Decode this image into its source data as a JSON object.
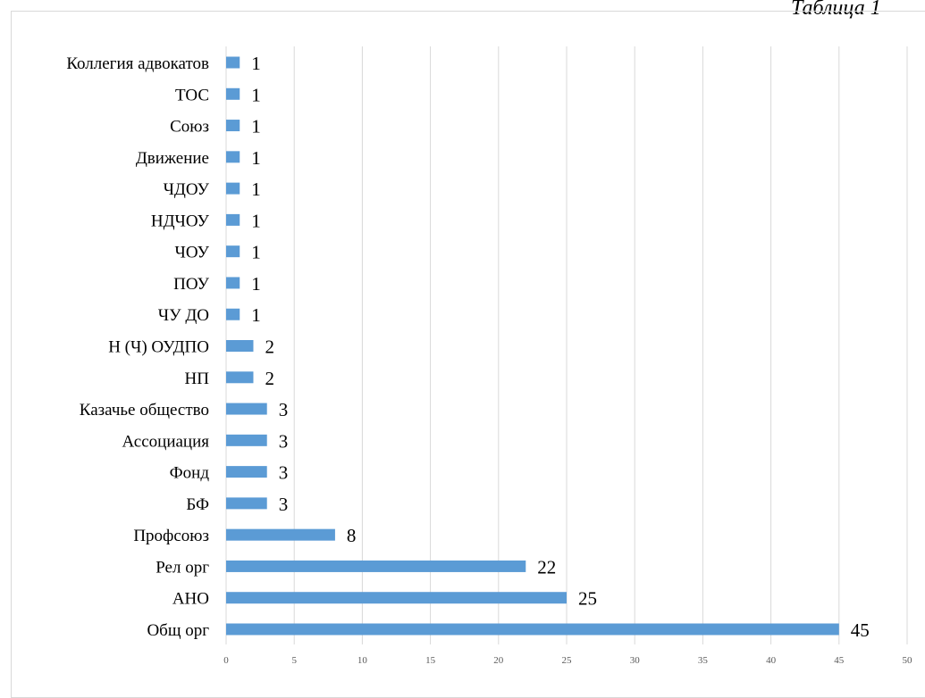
{
  "caption": "Таблица 1",
  "chart_data": {
    "type": "bar",
    "orientation": "horizontal",
    "categories": [
      "Коллегия адвокатов",
      "ТОС",
      "Союз",
      "Движение",
      "ЧДОУ",
      "НДЧОУ",
      "ЧОУ",
      "ПОУ",
      "ЧУ ДО",
      "Н (Ч) ОУДПО",
      "НП",
      "Казачье общество",
      "Ассоциация",
      "Фонд",
      "БФ",
      "Профсоюз",
      "Рел орг",
      "АНО",
      "Общ орг"
    ],
    "values": [
      1,
      1,
      1,
      1,
      1,
      1,
      1,
      1,
      1,
      2,
      2,
      3,
      3,
      3,
      3,
      8,
      22,
      25,
      45
    ],
    "xlim": [
      0,
      50
    ],
    "xticks": [
      0,
      5,
      10,
      15,
      20,
      25,
      30,
      35,
      40,
      45,
      50
    ],
    "grid": true,
    "bar_color": "#5b9bd5",
    "title": "",
    "xlabel": "",
    "ylabel": ""
  }
}
